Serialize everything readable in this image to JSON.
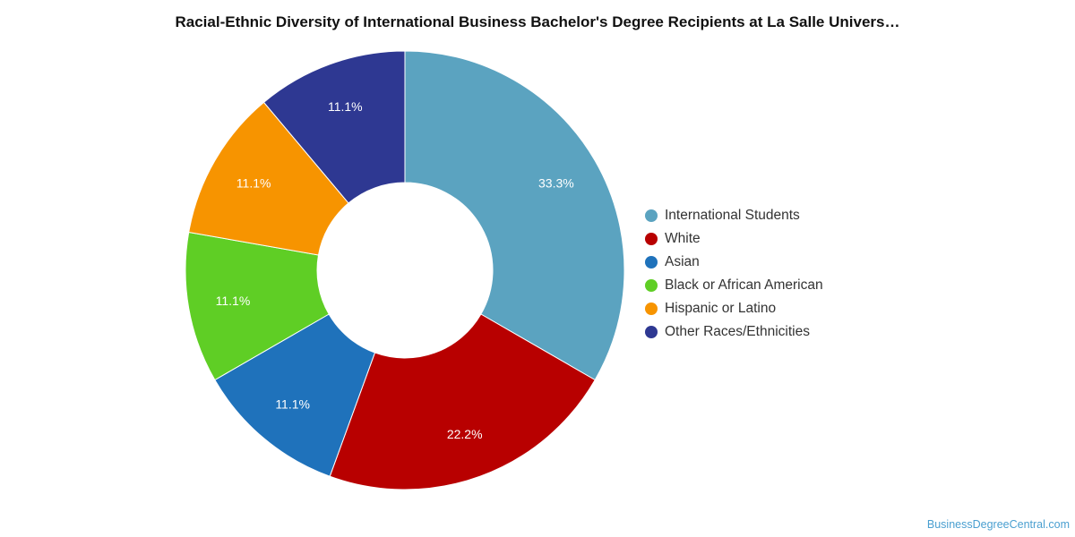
{
  "chart_data": {
    "type": "pie",
    "title": "Racial-Ethnic Diversity of International Business Bachelor's Degree Recipients at La Salle Univers…",
    "donut": true,
    "legend_position": "right",
    "slices": [
      {
        "label": "International Students",
        "value": 33.3,
        "display": "33.3%",
        "color": "#5ba3c0"
      },
      {
        "label": "White",
        "value": 22.2,
        "display": "22.2%",
        "color": "#b80000"
      },
      {
        "label": "Asian",
        "value": 11.1,
        "display": "11.1%",
        "color": "#1f72bb"
      },
      {
        "label": "Black or African American",
        "value": 11.1,
        "display": "11.1%",
        "color": "#5fce25"
      },
      {
        "label": "Hispanic or Latino",
        "value": 11.1,
        "display": "11.1%",
        "color": "#f79400"
      },
      {
        "label": "Other Races/Ethnicities",
        "value": 11.1,
        "display": "11.1%",
        "color": "#2e3892"
      }
    ]
  },
  "footer": {
    "credit": "BusinessDegreeCentral.com"
  }
}
